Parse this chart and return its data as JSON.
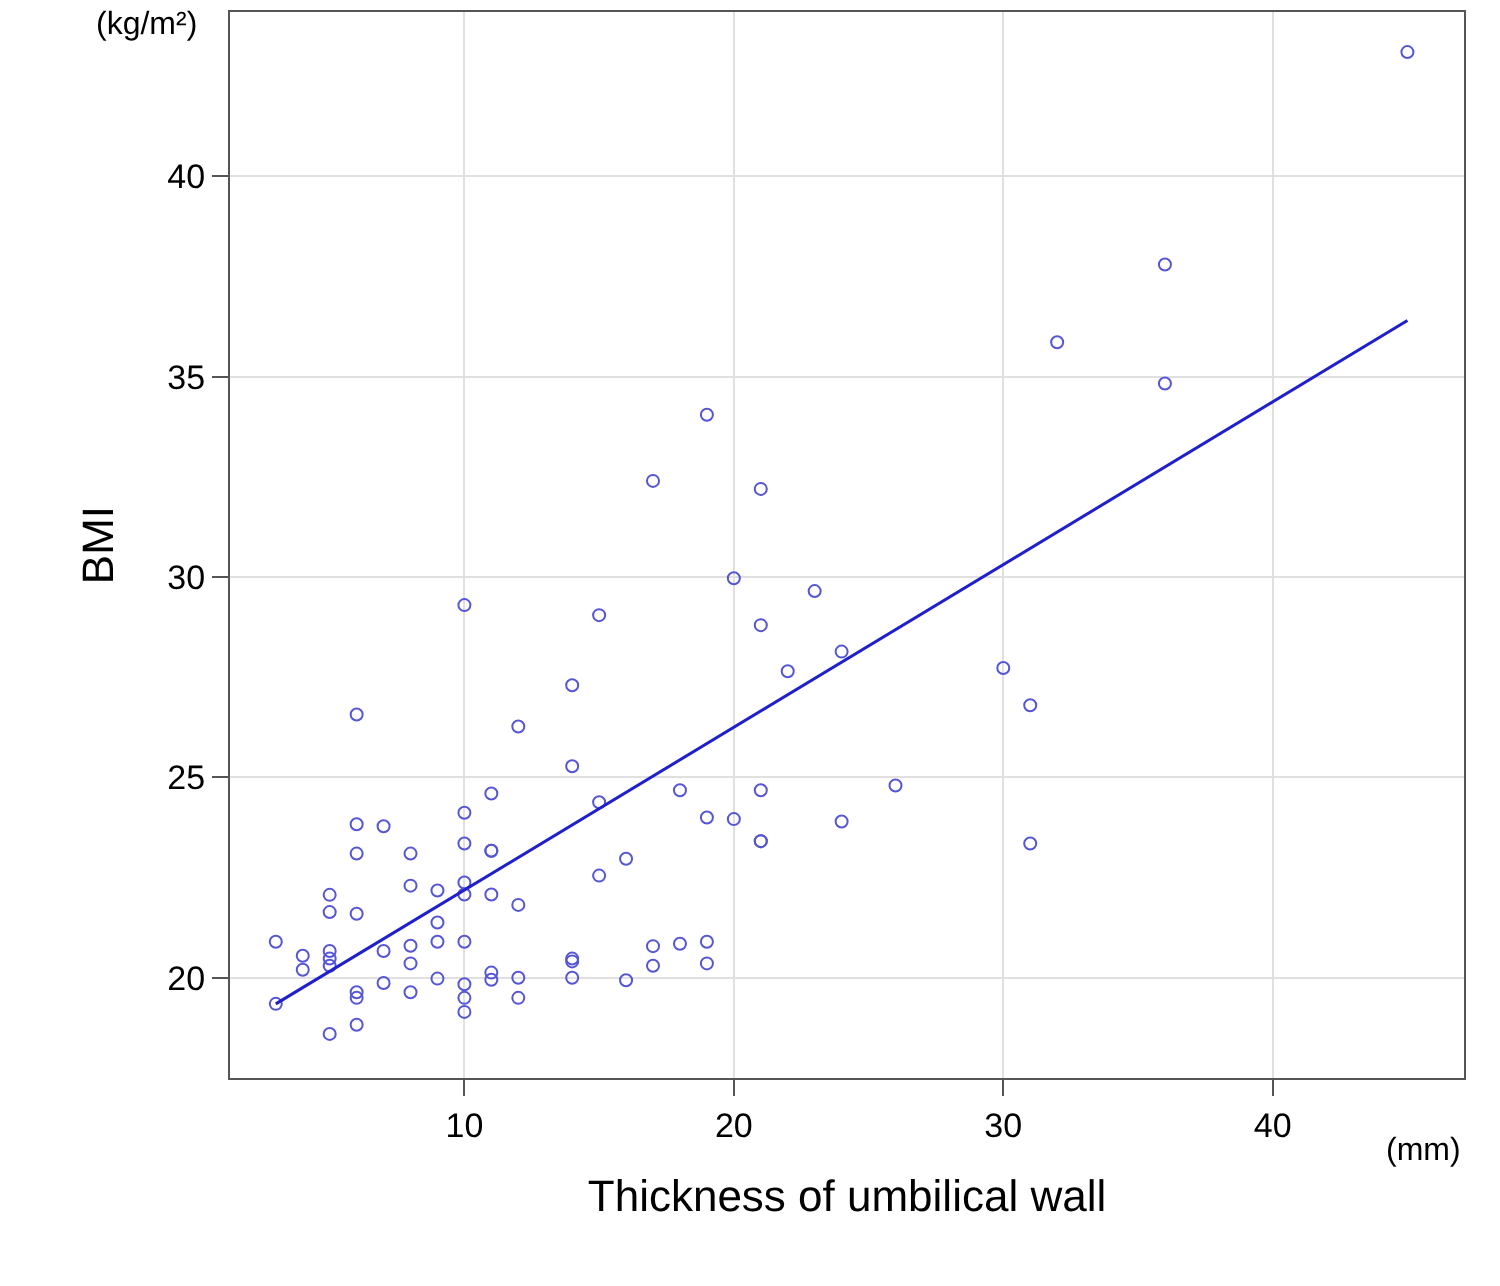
{
  "chart_data": {
    "type": "scatter",
    "xlabel": "Thickness of umbilical wall",
    "ylabel": "BMI",
    "annotations": [
      "(kg/m²)",
      "(mm)"
    ],
    "xlim": [
      1.3,
      47.1
    ],
    "ylim": [
      17.5,
      44.1
    ],
    "xticks": [
      10,
      20,
      30,
      40
    ],
    "yticks": [
      20,
      25,
      30,
      35,
      40
    ],
    "grid": true,
    "series": [
      {
        "marker": "circle",
        "color": "#5555d5",
        "x": [
          3,
          3,
          4,
          4,
          5,
          5,
          5,
          5,
          5,
          5,
          6,
          6,
          6,
          6,
          6,
          6,
          6,
          7,
          7,
          7,
          8,
          8,
          8,
          8,
          8,
          9,
          9,
          9,
          9,
          10,
          10,
          10,
          10,
          10,
          10,
          10,
          10,
          10,
          11,
          11,
          11,
          11,
          11,
          11,
          12,
          12,
          12,
          12,
          14,
          14,
          14,
          14,
          14,
          15,
          15,
          15,
          16,
          16,
          17,
          17,
          17,
          18,
          18,
          19,
          19,
          19,
          19,
          20,
          20,
          21,
          21,
          21,
          21,
          21,
          22,
          23,
          24,
          24,
          26,
          30,
          31,
          31,
          32,
          36,
          36,
          45
        ],
        "values": [
          20.9,
          19.35,
          20.55,
          20.2,
          22.07,
          21.64,
          20.67,
          20.48,
          20.3,
          18.6,
          23.83,
          23.1,
          21.6,
          19.64,
          19.5,
          18.83,
          26.57,
          23.78,
          20.67,
          19.87,
          23.1,
          22.3,
          20.8,
          20.36,
          19.64,
          22.18,
          21.38,
          20.9,
          19.98,
          29.3,
          24.12,
          23.35,
          22.38,
          22.08,
          20.9,
          19.84,
          19.5,
          19.15,
          24.6,
          23.17,
          23.17,
          22.08,
          20.13,
          19.95,
          26.27,
          21.82,
          20.0,
          19.5,
          27.3,
          25.28,
          20.48,
          20.41,
          20.0,
          29.05,
          24.38,
          22.55,
          22.97,
          19.94,
          32.4,
          20.79,
          20.3,
          24.68,
          20.85,
          34.05,
          24.0,
          20.9,
          20.36,
          29.97,
          23.96,
          32.2,
          28.8,
          24.68,
          23.41,
          23.41,
          27.65,
          29.65,
          28.14,
          23.9,
          24.8,
          27.73,
          26.8,
          23.35,
          35.86,
          37.8,
          34.83,
          43.1
        ]
      },
      {
        "type": "line",
        "color": "#1f1fcc",
        "line_style": "solid",
        "x": [
          3,
          45
        ],
        "values": [
          19.35,
          36.4
        ]
      }
    ]
  }
}
